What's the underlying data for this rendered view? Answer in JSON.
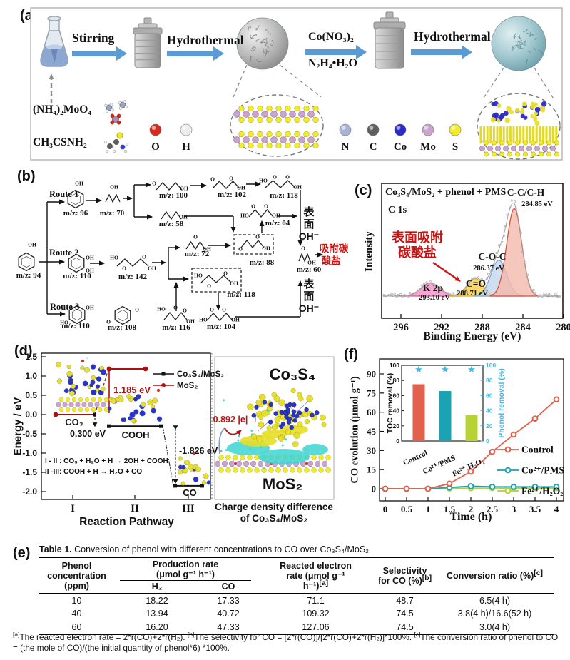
{
  "figure": {
    "panel_labels": {
      "a": "(a)",
      "b": "(b)",
      "c": "(c)",
      "d": "(d)",
      "e": "(e)",
      "f": "(f)"
    }
  },
  "panel_a": {
    "step1": "Stirring",
    "step2": "Hydrothermal",
    "step3_reagent_top": "Co(NO₃)₂",
    "step3_reagent_bottom": "N₂H₄•H₂O",
    "step3": "Hydrothermal",
    "precursor_1": "(NH₄)₂MoO₄",
    "precursor_2": "CH₃CSNH₂",
    "atoms": [
      {
        "label": "O",
        "color": "#d42a1e"
      },
      {
        "label": "H",
        "color": "#ececec"
      },
      {
        "label": "N",
        "color": "#a9b3d6"
      },
      {
        "label": "C",
        "color": "#5f5f5f"
      },
      {
        "label": "Co",
        "color": "#2b2bc8"
      },
      {
        "label": "Mo",
        "color": "#c9a4cc"
      },
      {
        "label": "S",
        "color": "#f2ea2c"
      }
    ]
  },
  "panel_b": {
    "route_labels": [
      "Route 1",
      "Route 2",
      "Route 3"
    ],
    "surface_oh": [
      "表",
      "面",
      "OH⁻"
    ],
    "adsorbed_carbonate": [
      "吸附碳",
      "酸盐"
    ],
    "carbonate_color": "#cc1111",
    "molecules": [
      {
        "id": "phenol",
        "mz": "m/z: 94"
      },
      {
        "id": "r1_96",
        "mz": "m/z: 96"
      },
      {
        "id": "r1_70",
        "mz": "m/z: 70"
      },
      {
        "id": "r1_100",
        "mz": "m/z: 100"
      },
      {
        "id": "r1_58",
        "mz": "m/z: 58"
      },
      {
        "id": "r1_102",
        "mz": "m/z: 102"
      },
      {
        "id": "r1_118",
        "mz": "m/z: 118"
      },
      {
        "id": "r2_110",
        "mz": "m/z: 110"
      },
      {
        "id": "r2_142",
        "mz": "m/z: 142"
      },
      {
        "id": "mid_72",
        "mz": "m/z: 72"
      },
      {
        "id": "mid_88",
        "mz": "m/z: 88",
        "boxed": true
      },
      {
        "id": "mid_04",
        "mz": "m/z: 04"
      },
      {
        "id": "mid_118",
        "mz": "m/z: 118",
        "boxed": true
      },
      {
        "id": "mid_104",
        "mz": "m/z: 104"
      },
      {
        "id": "r3_110",
        "mz": "m/z: 110"
      },
      {
        "id": "r3_108",
        "mz": "m/z: 108"
      },
      {
        "id": "r3_116",
        "mz": "m/z: 116"
      },
      {
        "id": "acetic_60",
        "mz": "m/z: 60"
      }
    ]
  },
  "chart_data": [
    {
      "id": "xps_c1s",
      "type": "area",
      "title": "Co₃S₄/MoS₂ + phenol + PMS",
      "subtitle": "C 1s",
      "xlabel": "Binding Energy (eV)",
      "ylabel": "Intensity",
      "x_ticks": [
        296,
        292,
        288,
        284,
        280
      ],
      "axis_direction": "decreasing",
      "peaks": [
        {
          "label": "K 2p",
          "label2": "293.10 eV",
          "binding_energy_ev": 293.1,
          "rel_height": 0.15,
          "fill": "#f191c6",
          "stroke": "#d6569f"
        },
        {
          "label": "C=O",
          "label2": "288.71 eV",
          "binding_energy_ev": 288.71,
          "rel_height": 0.2,
          "fill": "#f6d14e",
          "stroke": "#dfae1e"
        },
        {
          "label": "C-O-C",
          "label2": "286.37 eV",
          "binding_energy_ev": 286.37,
          "rel_height": 0.41,
          "fill": "#c3d7ee",
          "stroke": "#7fa8d8"
        },
        {
          "label": "C-C/C-H",
          "label2": "284.85 eV",
          "binding_energy_ev": 284.85,
          "rel_height": 1.0,
          "fill": "#f4b9ac",
          "stroke": "#d4503a"
        }
      ],
      "annotation": {
        "lines": [
          "表面吸附",
          "碳酸盐"
        ],
        "color": "#cc1111",
        "points_to": "C=O"
      }
    },
    {
      "id": "energy_pathway",
      "type": "line",
      "xlabel": "Reaction Pathway",
      "ylabel": "Energy / eV",
      "x_ticks": [
        "I",
        "II",
        "III"
      ],
      "ylim": [
        -2.0,
        1.5
      ],
      "y_step": 0.5,
      "series": [
        {
          "name": "Co₃S₄/MoS₂",
          "color": "#111111",
          "marker": "square",
          "values_ev": [
            0.0,
            -0.3,
            -1.826
          ]
        },
        {
          "name": "MoS₂",
          "color": "#aa1111",
          "marker": "circle",
          "values_ev": [
            0.0,
            1.185,
            1.185
          ]
        }
      ],
      "state_labels": [
        "CO₃",
        "COOH",
        "CO"
      ],
      "step_labels": [
        "0.300 eV",
        "1.185 eV",
        "-1.826 eV"
      ],
      "equations": [
        "I - II : CO₃ + H₂O + H → 2OH + COOH",
        "II -III: COOH + H → H₂O + CO"
      ]
    },
    {
      "id": "co_evolution",
      "type": "line",
      "xlabel": "Time (h)",
      "ylabel": "CO evolution (μmol g⁻¹)",
      "x": [
        0,
        0.5,
        1,
        1.5,
        2,
        2.5,
        3,
        3.5,
        4
      ],
      "y_ticks": [
        0,
        15,
        30,
        45,
        60,
        75,
        90
      ],
      "series": [
        {
          "name": "Control",
          "color": "#e0614d",
          "values": [
            0,
            0,
            0,
            4,
            13.5,
            29,
            42.5,
            55,
            70
          ]
        },
        {
          "name": "Co²⁺/PMS",
          "color": "#1ba3b3",
          "values": [
            0,
            0,
            0,
            1,
            2,
            1.5,
            1.5,
            1.5,
            1.5
          ]
        },
        {
          "name": "Fe²⁺/H₂O₂",
          "color": "#b5d334",
          "values": [
            0,
            0,
            0,
            0.3,
            0.5,
            0.5,
            0.5,
            0.5,
            0.5
          ]
        }
      ]
    },
    {
      "id": "removal_inset",
      "type": "bar",
      "categories": [
        "Control",
        "Co²⁺/PMS",
        "Fe²⁺/H₂O₂"
      ],
      "values_toc_removal_pct": [
        75,
        66,
        34
      ],
      "bar_colors": [
        "#e0614d",
        "#1ba3b3",
        "#b5d334"
      ],
      "ylabel_left": "TOC removal (%)",
      "ylabel_right": "Phenol removal (%)",
      "left_ticks": [
        0,
        20,
        40,
        60,
        80,
        100
      ],
      "right_ticks": [
        0,
        20,
        40,
        60,
        80,
        100
      ],
      "phenol_removal_pct": [
        100,
        100,
        100
      ],
      "star_symbol": "★",
      "star_color": "#3fb8e9",
      "right_axis_color": "#3fb8e9"
    }
  ],
  "panel_d_extra": {
    "co3s4_label": "Co₃S₄",
    "mos2_label": "MoS₂",
    "charge_label": "0.892 |e|",
    "charge_color": "#bb1111",
    "caption_line1": "Charge density difference",
    "caption_line2": "of Co₃S₄/MoS₂"
  },
  "panel_e": {
    "title_bold": "Table 1.",
    "title_rest": " Conversion of phenol with different concentrations to CO over Co₃S₄/MoS₂",
    "col1_lines": [
      "Phenol",
      "concentration",
      "(ppm)"
    ],
    "group_lines": [
      "Production rate",
      "(μmol g⁻¹ h⁻¹)"
    ],
    "sub_h2": "H₂",
    "sub_co": "CO",
    "col4_lines": [
      "Reacted electron",
      "rate (μmol g⁻¹",
      "h⁻¹)[a]"
    ],
    "col5_lines": [
      "Selectivity",
      "for CO (%)[b]"
    ],
    "col6_lines": [
      "Conversion ratio (%)[c]"
    ],
    "rows": [
      [
        "10",
        "18.22",
        "17.33",
        "71.1",
        "48.7",
        "6.5(4 h)"
      ],
      [
        "40",
        "13.94",
        "40.72",
        "109.32",
        "74.5",
        "3.8(4 h)/16.6(52 h)"
      ],
      [
        "60",
        "16.20",
        "47.33",
        "127.06",
        "74.5",
        "3.0(4 h)"
      ]
    ],
    "footnote": "[a]The reacted electron rate = 2*r(CO)+2*r(H₂). [b]The selectivity for CO = [2*r(CO)]/[2*r(CO)+2*r(H₂)]*100%. [c]The conversion ratio of phenol to CO = (the mole of CO)/(the initial quantity of phenol*6) *100%."
  }
}
